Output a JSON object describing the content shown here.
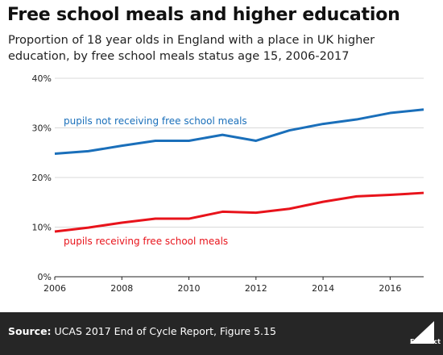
{
  "header": {
    "title": "Free school meals and higher education",
    "subtitle": "Proportion of 18 year olds in England with a place in UK higher education, by free school meals status age 15, 2006-2017"
  },
  "footer": {
    "source_label": "Source:",
    "source_text": "UCAS 2017 End of Cycle Report, Figure 5.15",
    "logo_text": "Full Fact"
  },
  "colors": {
    "not_fsm": "#1a6fba",
    "fsm": "#e8131b",
    "gridline": "#d9d9d9",
    "footer_bg": "#262626"
  },
  "chart_data": {
    "type": "line",
    "x": [
      2006,
      2007,
      2008,
      2009,
      2010,
      2011,
      2012,
      2013,
      2014,
      2015,
      2016,
      2017
    ],
    "xlim": [
      2006,
      2017
    ],
    "ylim": [
      0,
      40
    ],
    "x_ticks": [
      "2006",
      "2008",
      "2010",
      "2012",
      "2014",
      "2016"
    ],
    "y_ticks": [
      "0%",
      "10%",
      "20%",
      "30%",
      "40%"
    ],
    "grid": true,
    "series": [
      {
        "name": "pupils not receiving free school meals",
        "color": "#1a6fba",
        "values": [
          24.8,
          25.3,
          26.4,
          27.4,
          27.4,
          28.6,
          27.4,
          29.5,
          30.8,
          31.7,
          33.0,
          33.7
        ]
      },
      {
        "name": "pupils receiving free school meals",
        "color": "#e8131b",
        "values": [
          9.1,
          9.9,
          10.9,
          11.7,
          11.7,
          13.1,
          12.9,
          13.7,
          15.1,
          16.2,
          16.5,
          16.9
        ]
      }
    ]
  }
}
